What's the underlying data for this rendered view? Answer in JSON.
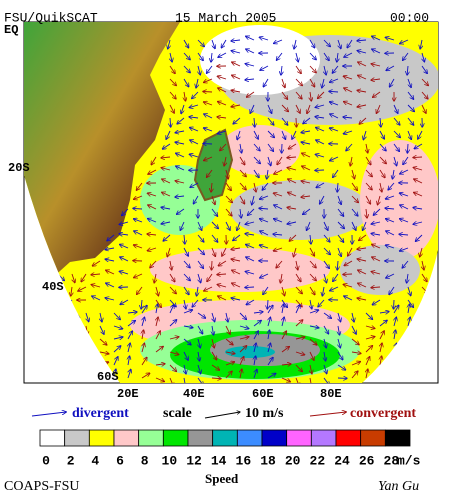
{
  "header": {
    "source": "FSU/QuikSCAT",
    "date": "15 March 2005",
    "time": "00:00"
  },
  "map": {
    "lat_labels": [
      "EQ",
      "20S",
      "40S",
      "60S"
    ],
    "lon_labels": [
      "20E",
      "40E",
      "60E",
      "80E"
    ]
  },
  "legend": {
    "divergent": "divergent",
    "scale": "scale",
    "scale_value": "10 m/s",
    "convergent": "convergent"
  },
  "colorbar": {
    "title": "Speed",
    "unit": "m/s",
    "colors": [
      "#ffffff",
      "#c8c8c8",
      "#ffff00",
      "#ffc8c8",
      "#96ff96",
      "#00e600",
      "#969696",
      "#00b4b4",
      "#3c8cff",
      "#0000c8",
      "#ff64ff",
      "#b478ff",
      "#ff0000",
      "#c83c00",
      "#000000"
    ],
    "ticks": [
      0,
      2,
      4,
      6,
      8,
      10,
      12,
      14,
      16,
      18,
      20,
      22,
      24,
      26,
      28
    ]
  },
  "footer": {
    "credit": "COAPS-FSU",
    "author": "Yan Gu"
  }
}
